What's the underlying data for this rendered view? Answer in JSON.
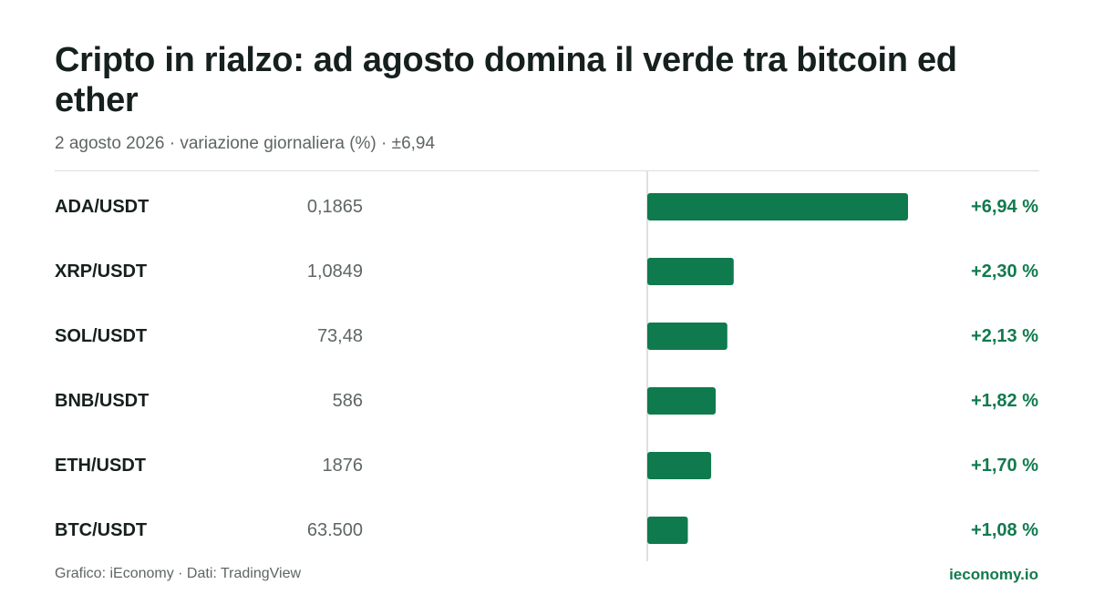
{
  "header": {
    "title": "Cripto in rialzo: ad agosto domina il verde tra bitcoin ed ether",
    "subtitle": "2 agosto 2026 · variazione giornaliera (%) · ±6,94"
  },
  "footer": {
    "credit": "Grafico: iEconomy · Dati: TradingView",
    "brand": "ieconomy.io"
  },
  "colors": {
    "bar": "#0f7a4d",
    "positive_text": "#117a4f",
    "axis": "#d3d7d6"
  },
  "chart_data": {
    "type": "bar",
    "orientation": "horizontal",
    "categories": [
      "ADA/USDT",
      "XRP/USDT",
      "SOL/USDT",
      "BNB/USDT",
      "ETH/USDT",
      "BTC/USDT"
    ],
    "prices": [
      "0,1865",
      "1,0849",
      "73,48",
      "586",
      "1876",
      "63.500"
    ],
    "values": [
      6.94,
      2.3,
      2.13,
      1.82,
      1.7,
      1.08
    ],
    "value_labels": [
      "+6,94 %",
      "+2,30 %",
      "+2,13 %",
      "+1,82 %",
      "+1,70 %",
      "+1,08 %"
    ],
    "xlim": [
      -6.94,
      6.94
    ],
    "grid": false
  }
}
